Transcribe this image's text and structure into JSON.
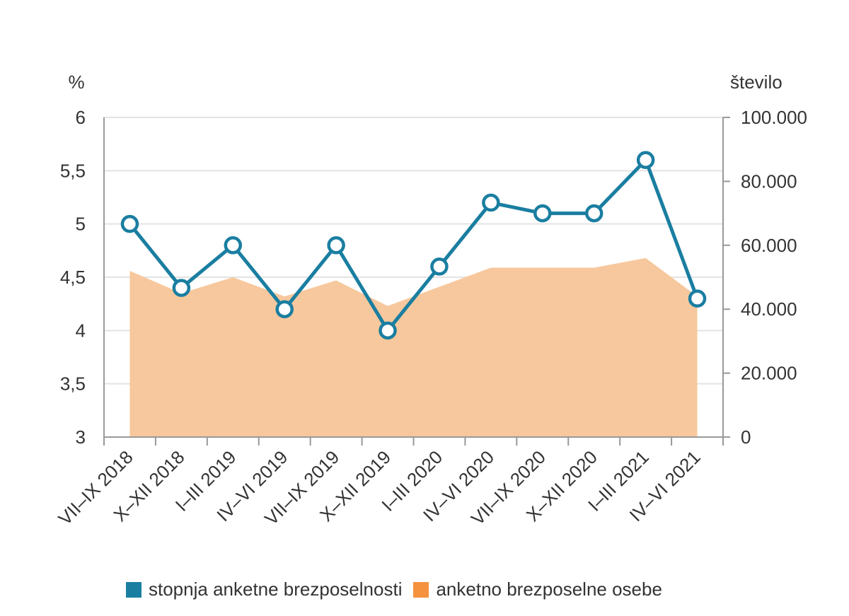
{
  "chart_data": {
    "type": "line",
    "categories": [
      "VII–IX 2018",
      "X–XII 2018",
      "I–III 2019",
      "IV–VI 2019",
      "VII–IX 2019",
      "X–XII 2019",
      "I–III 2020",
      "IV–VI 2020",
      "VII–IX 2020",
      "X–XII 2020",
      "I–III 2021",
      "IV–VI 2021"
    ],
    "series": [
      {
        "name": "stopnja anketne brezposelnosti",
        "type": "line",
        "axis": "left",
        "color": "#1a7ea1",
        "values": [
          5.0,
          4.4,
          4.8,
          4.2,
          4.8,
          4.0,
          4.6,
          5.2,
          5.1,
          5.1,
          5.6,
          4.3
        ]
      },
      {
        "name": "anketno brezposelne osebe",
        "type": "area",
        "axis": "right",
        "color": "#f7c89d",
        "values": [
          52000,
          45000,
          50000,
          44000,
          49000,
          41000,
          47000,
          53000,
          53000,
          53000,
          56000,
          44000
        ]
      }
    ],
    "y_left": {
      "label": "%",
      "ylim": [
        3,
        6
      ],
      "ticks": [
        "3",
        "3,5",
        "4",
        "4,5",
        "5",
        "5,5",
        "6"
      ],
      "tick_values": [
        3,
        3.5,
        4,
        4.5,
        5,
        5.5,
        6
      ]
    },
    "y_right": {
      "label": "število",
      "ylim": [
        0,
        100000
      ],
      "ticks": [
        "0",
        "20.000",
        "40.000",
        "60.000",
        "80.000",
        "100.000"
      ],
      "tick_values": [
        0,
        20000,
        40000,
        60000,
        80000,
        100000
      ]
    },
    "grid": true,
    "legend_position": "bottom"
  },
  "legend": {
    "items": [
      {
        "label": "stopnja anketne brezposelnosti",
        "color": "#1a7ea1"
      },
      {
        "label": "anketno brezposelne osebe",
        "color": "#f5923e"
      }
    ]
  }
}
